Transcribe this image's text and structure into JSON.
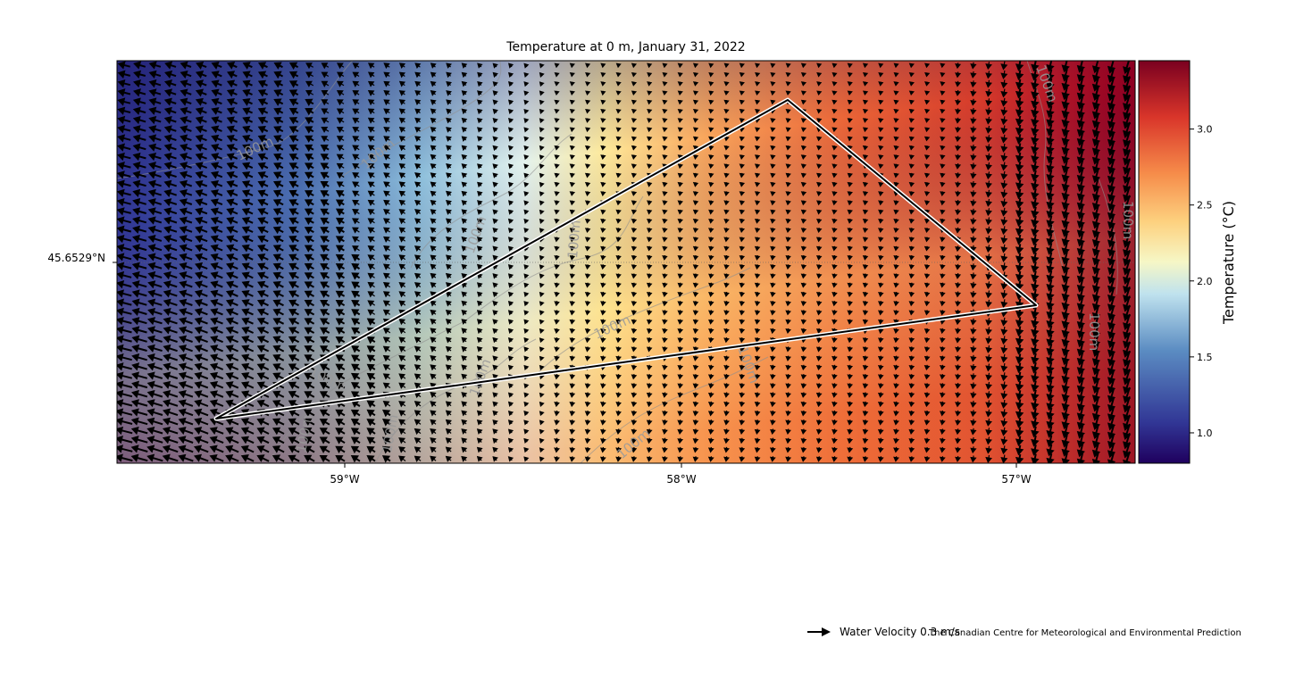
{
  "map": {
    "title": "Temperature  at 0 m, January 31, 2022",
    "lon_ticks": [
      {
        "lon": -59,
        "label": "59°W"
      },
      {
        "lon": -58,
        "label": "58°W"
      },
      {
        "lon": -57,
        "label": "57°W"
      }
    ],
    "lat_ticks": [
      {
        "label": "45.6529°N"
      }
    ],
    "extent": {
      "lon_min": -59.68,
      "lon_max": -56.63
    },
    "contour_labels": [
      "100m",
      "100m",
      "100m",
      "100m",
      "100m",
      "100m",
      "100m",
      "100m",
      "100m",
      "100m",
      "100m",
      "100m",
      "100m",
      "100m"
    ],
    "transect": {
      "vertices": [
        {
          "lon": -59.39,
          "name": "transect-vertex-sw"
        },
        {
          "lon": -57.67,
          "name": "transect-vertex-n"
        },
        {
          "lon": -56.94,
          "name": "transect-vertex-e"
        }
      ]
    },
    "colormap": "RdYlBu_r",
    "colors": {
      "transect_outer": "#ffffff",
      "transect_inner": "#000000",
      "arrow": "#000000"
    }
  },
  "colorbar": {
    "label": "Temperature (°C)",
    "ticks": [
      "1.0",
      "1.5",
      "2.0",
      "2.5",
      "3.0"
    ],
    "range": [
      0.8,
      3.45
    ]
  },
  "legend": {
    "text": "Water Velocity 0.3 m/s",
    "icon": "arrow-right-icon"
  },
  "credit": "The Canadian Centre for Meteorological and Environmental Prediction"
}
